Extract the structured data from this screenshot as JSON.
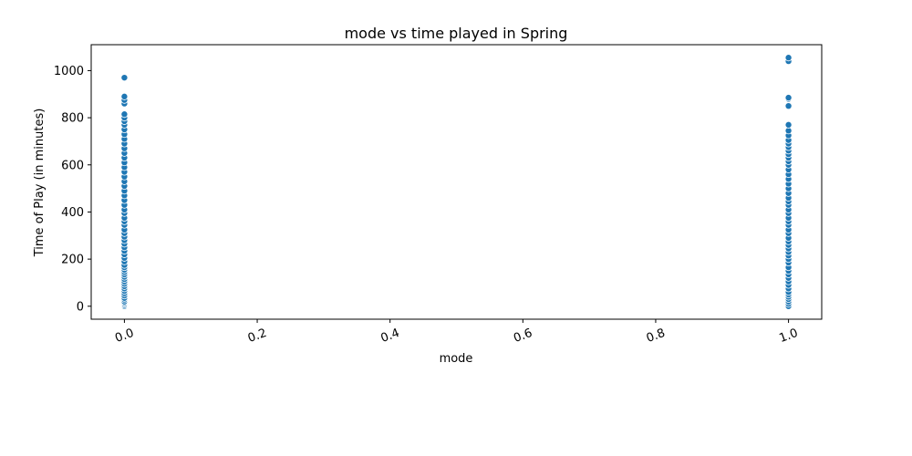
{
  "chart_data": {
    "type": "scatter",
    "title": "mode vs time played in Spring",
    "xlabel": "mode",
    "ylabel": "Time of Play (in minutes)",
    "xlim": [
      -0.05,
      1.05
    ],
    "ylim": [
      -55,
      1110
    ],
    "x_ticks": [
      0.0,
      0.2,
      0.4,
      0.6,
      0.8,
      1.0
    ],
    "x_tick_labels": [
      "0.0",
      "0.2",
      "0.4",
      "0.6",
      "0.8",
      "1.0"
    ],
    "y_ticks": [
      0,
      200,
      400,
      600,
      800,
      1000
    ],
    "y_tick_labels": [
      "0",
      "200",
      "400",
      "600",
      "800",
      "1000"
    ],
    "x_tick_rotation": 20,
    "grid": false,
    "point_color": "#1f77b4",
    "series": [
      {
        "x": 0.0,
        "y": [
          0,
          5,
          10,
          15,
          20,
          28,
          35,
          45,
          55,
          65,
          75,
          85,
          95,
          105,
          115,
          125,
          135,
          145,
          155,
          165,
          175,
          190,
          205,
          220,
          235,
          250,
          265,
          280,
          295,
          310,
          325,
          345,
          360,
          375,
          395,
          410,
          430,
          450,
          470,
          490,
          510,
          530,
          550,
          570,
          590,
          610,
          630,
          650,
          670,
          690,
          710,
          730,
          750,
          770,
          785,
          800,
          815,
          860,
          875,
          890,
          970
        ]
      },
      {
        "x": 1.0,
        "y": [
          0,
          10,
          20,
          30,
          40,
          50,
          60,
          75,
          90,
          105,
          120,
          135,
          150,
          165,
          185,
          200,
          215,
          230,
          245,
          260,
          275,
          290,
          310,
          325,
          345,
          360,
          375,
          395,
          410,
          430,
          445,
          460,
          480,
          500,
          520,
          540,
          560,
          580,
          600,
          615,
          630,
          645,
          660,
          675,
          690,
          705,
          725,
          745,
          770,
          850,
          880,
          885,
          1040,
          1055
        ]
      }
    ]
  }
}
